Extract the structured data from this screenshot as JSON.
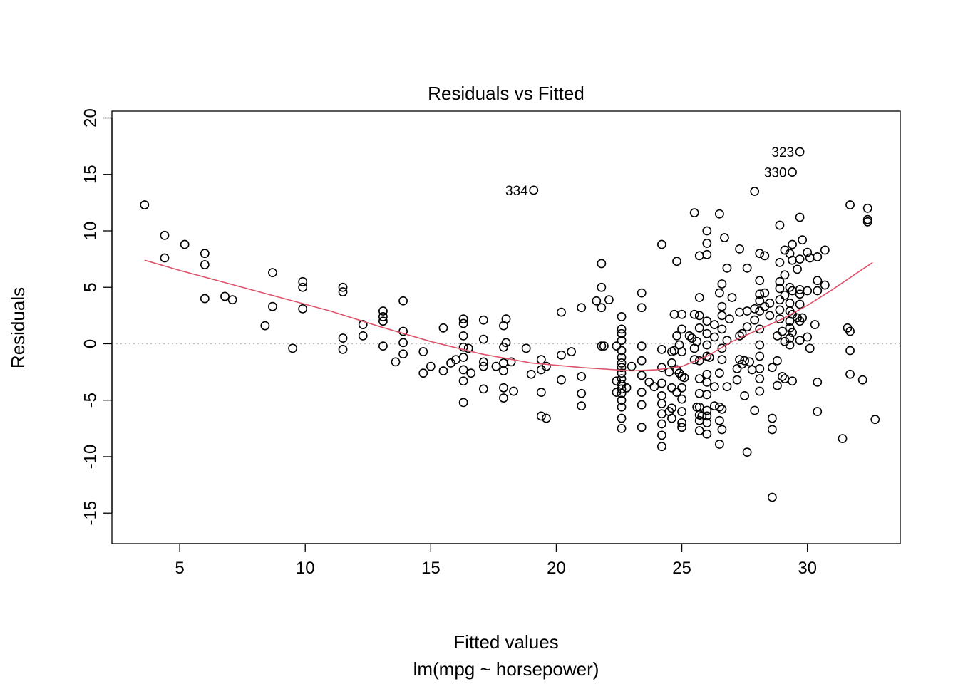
{
  "chart_data": {
    "type": "scatter",
    "title": "Residuals vs Fitted",
    "xlabel": "Fitted values",
    "xlabel2": "lm(mpg ~ horsepower)",
    "ylabel": "Residuals",
    "xlim": [
      2.3,
      33.7
    ],
    "ylim": [
      -17.7,
      20.6
    ],
    "xticks": [
      5,
      10,
      15,
      20,
      25,
      30
    ],
    "yticks": [
      -15,
      -10,
      -5,
      0,
      5,
      10,
      15,
      20
    ],
    "grid": false,
    "reference_line": {
      "y": 0,
      "style": "dotted",
      "color": "#bebebe"
    },
    "smooth_color": "#DF536B",
    "point_color": "#000000",
    "smooth": [
      [
        3.6,
        7.4
      ],
      [
        5,
        6.5
      ],
      [
        7,
        5.3
      ],
      [
        9,
        4.1
      ],
      [
        11,
        2.9
      ],
      [
        13,
        1.5
      ],
      [
        15,
        0.2
      ],
      [
        17,
        -0.9
      ],
      [
        19,
        -1.7
      ],
      [
        21,
        -2.1
      ],
      [
        23,
        -2.4
      ],
      [
        24,
        -2.3
      ],
      [
        25,
        -2.0
      ],
      [
        26,
        -1.1
      ],
      [
        27,
        0.2
      ],
      [
        28,
        1.2
      ],
      [
        29,
        2.2
      ],
      [
        30,
        3.4
      ],
      [
        31,
        4.8
      ],
      [
        32,
        6.3
      ],
      [
        32.6,
        7.2
      ]
    ],
    "points": [
      [
        3.6,
        12.3
      ],
      [
        4.4,
        9.6
      ],
      [
        4.4,
        7.6
      ],
      [
        5.2,
        8.8
      ],
      [
        6.0,
        8.0
      ],
      [
        6.0,
        7.0
      ],
      [
        6.0,
        4.0
      ],
      [
        6.8,
        4.2
      ],
      [
        7.1,
        3.9
      ],
      [
        8.4,
        1.6
      ],
      [
        8.7,
        3.3
      ],
      [
        8.7,
        6.3
      ],
      [
        9.5,
        -0.4
      ],
      [
        9.9,
        5.5
      ],
      [
        9.9,
        5.0
      ],
      [
        9.9,
        3.1
      ],
      [
        11.5,
        5.0
      ],
      [
        11.5,
        4.6
      ],
      [
        11.5,
        0.5
      ],
      [
        11.5,
        -0.5
      ],
      [
        12.3,
        1.7
      ],
      [
        12.3,
        0.7
      ],
      [
        13.1,
        2.9
      ],
      [
        13.1,
        2.4
      ],
      [
        13.1,
        2.0
      ],
      [
        13.1,
        -0.2
      ],
      [
        13.6,
        -1.6
      ],
      [
        13.9,
        3.8
      ],
      [
        13.9,
        1.1
      ],
      [
        13.9,
        0.1
      ],
      [
        13.9,
        -0.9
      ],
      [
        14.7,
        -0.7
      ],
      [
        14.7,
        -2.6
      ],
      [
        15.0,
        -2.0
      ],
      [
        15.5,
        1.4
      ],
      [
        15.5,
        -2.4
      ],
      [
        15.8,
        -1.7
      ],
      [
        16.0,
        -1.4
      ],
      [
        16.3,
        2.2
      ],
      [
        16.3,
        1.8
      ],
      [
        16.3,
        0.7
      ],
      [
        16.3,
        -0.3
      ],
      [
        16.3,
        -1.2
      ],
      [
        16.3,
        -2.3
      ],
      [
        16.3,
        -3.3
      ],
      [
        16.3,
        -5.2
      ],
      [
        16.5,
        -0.4
      ],
      [
        16.6,
        -2.6
      ],
      [
        17.1,
        2.1
      ],
      [
        17.1,
        0.4
      ],
      [
        17.1,
        -1.6
      ],
      [
        17.1,
        -2.0
      ],
      [
        17.1,
        -4.0
      ],
      [
        17.6,
        -2.0
      ],
      [
        17.9,
        1.6
      ],
      [
        17.9,
        -0.3
      ],
      [
        17.9,
        -1.7
      ],
      [
        17.9,
        -2.4
      ],
      [
        17.9,
        -3.9
      ],
      [
        17.9,
        -4.8
      ],
      [
        18.0,
        2.2
      ],
      [
        18.0,
        0.1
      ],
      [
        18.2,
        -1.6
      ],
      [
        18.3,
        -4.2
      ],
      [
        18.8,
        -0.4
      ],
      [
        19.0,
        -2.7
      ],
      [
        19.1,
        13.6
      ],
      [
        19.4,
        -1.4
      ],
      [
        19.4,
        -2.3
      ],
      [
        19.4,
        -4.3
      ],
      [
        19.4,
        -6.4
      ],
      [
        19.6,
        -2.0
      ],
      [
        19.6,
        -6.6
      ],
      [
        20.2,
        2.8
      ],
      [
        20.2,
        -1.0
      ],
      [
        20.2,
        -3.2
      ],
      [
        20.6,
        -0.7
      ],
      [
        21.0,
        3.2
      ],
      [
        21.0,
        -2.9
      ],
      [
        21.0,
        -4.4
      ],
      [
        21.0,
        -5.5
      ],
      [
        21.6,
        3.8
      ],
      [
        21.8,
        7.1
      ],
      [
        21.8,
        5.0
      ],
      [
        21.8,
        3.2
      ],
      [
        21.8,
        -0.2
      ],
      [
        21.9,
        -0.2
      ],
      [
        22.1,
        3.9
      ],
      [
        22.4,
        -0.2
      ],
      [
        22.4,
        -3.3
      ],
      [
        22.4,
        -4.3
      ],
      [
        22.6,
        2.4
      ],
      [
        22.6,
        1.3
      ],
      [
        22.6,
        0.9
      ],
      [
        22.6,
        0.3
      ],
      [
        22.6,
        -0.6
      ],
      [
        22.6,
        -1.2
      ],
      [
        22.6,
        -1.7
      ],
      [
        22.6,
        -2.1
      ],
      [
        22.6,
        -2.6
      ],
      [
        22.6,
        -3.1
      ],
      [
        22.6,
        -3.6
      ],
      [
        22.6,
        -4.0
      ],
      [
        22.6,
        -4.4
      ],
      [
        22.6,
        -5.0
      ],
      [
        22.6,
        -5.6
      ],
      [
        22.6,
        -6.6
      ],
      [
        22.6,
        -7.5
      ],
      [
        22.8,
        -3.9
      ],
      [
        23.0,
        -2.0
      ],
      [
        23.4,
        4.5
      ],
      [
        23.4,
        3.2
      ],
      [
        23.4,
        -0.2
      ],
      [
        23.4,
        -1.5
      ],
      [
        23.4,
        -2.8
      ],
      [
        23.4,
        -4.3
      ],
      [
        23.4,
        -5.4
      ],
      [
        23.4,
        -7.4
      ],
      [
        23.7,
        -3.4
      ],
      [
        23.9,
        -3.8
      ],
      [
        24.2,
        8.8
      ],
      [
        24.2,
        -0.5
      ],
      [
        24.2,
        -2.1
      ],
      [
        24.2,
        -3.5
      ],
      [
        24.2,
        -4.6
      ],
      [
        24.2,
        -5.3
      ],
      [
        24.2,
        -6.2
      ],
      [
        24.2,
        -7.1
      ],
      [
        24.2,
        -8.1
      ],
      [
        24.2,
        -9.1
      ],
      [
        24.5,
        -2.5
      ],
      [
        24.5,
        -6.0
      ],
      [
        24.6,
        -0.7
      ],
      [
        24.6,
        -1.7
      ],
      [
        24.6,
        -3.9
      ],
      [
        24.6,
        -5.7
      ],
      [
        24.6,
        -6.6
      ],
      [
        24.7,
        2.6
      ],
      [
        24.7,
        -0.6
      ],
      [
        24.8,
        7.3
      ],
      [
        24.8,
        0.7
      ],
      [
        24.8,
        -2.3
      ],
      [
        24.8,
        -4.3
      ],
      [
        24.9,
        -0.1
      ],
      [
        24.9,
        -2.6
      ],
      [
        25.0,
        2.6
      ],
      [
        25.0,
        1.3
      ],
      [
        25.0,
        -0.7
      ],
      [
        25.0,
        -2.9
      ],
      [
        25.0,
        -3.9
      ],
      [
        25.0,
        -4.9
      ],
      [
        25.0,
        -6.0
      ],
      [
        25.0,
        -7.0
      ],
      [
        25.0,
        -7.4
      ],
      [
        25.1,
        -3.0
      ],
      [
        25.3,
        0.7
      ],
      [
        25.4,
        0.5
      ],
      [
        25.5,
        11.6
      ],
      [
        25.5,
        2.6
      ],
      [
        25.5,
        -0.4
      ],
      [
        25.5,
        -1.4
      ],
      [
        25.6,
        -5.6
      ],
      [
        25.6,
        0.2
      ],
      [
        25.7,
        7.8
      ],
      [
        25.7,
        4.1
      ],
      [
        25.7,
        2.5
      ],
      [
        25.7,
        1.4
      ],
      [
        25.7,
        -1.5
      ],
      [
        25.7,
        -3.1
      ],
      [
        25.7,
        -4.4
      ],
      [
        25.7,
        -5.6
      ],
      [
        25.7,
        -6.3
      ],
      [
        25.7,
        -6.8
      ],
      [
        25.7,
        -7.7
      ],
      [
        25.8,
        -6.4
      ],
      [
        26.0,
        10.0
      ],
      [
        26.0,
        8.9
      ],
      [
        26.0,
        7.9
      ],
      [
        26.0,
        2.0
      ],
      [
        26.0,
        0.9
      ],
      [
        26.0,
        -0.1
      ],
      [
        26.0,
        -1.1
      ],
      [
        26.0,
        -2.7
      ],
      [
        26.0,
        -3.4
      ],
      [
        26.0,
        -4.5
      ],
      [
        26.0,
        -5.9
      ],
      [
        26.0,
        -6.4
      ],
      [
        26.0,
        -7.0
      ],
      [
        26.0,
        -8.0
      ],
      [
        26.1,
        -1.2
      ],
      [
        26.3,
        1.7
      ],
      [
        26.3,
        0.6
      ],
      [
        26.3,
        -5.5
      ],
      [
        26.3,
        -3.8
      ],
      [
        26.5,
        11.5
      ],
      [
        26.5,
        4.5
      ],
      [
        26.5,
        -2.6
      ],
      [
        26.5,
        -5.6
      ],
      [
        26.5,
        -6.8
      ],
      [
        26.5,
        -8.9
      ],
      [
        26.6,
        5.3
      ],
      [
        26.6,
        3.3
      ],
      [
        26.6,
        2.5
      ],
      [
        26.6,
        1.3
      ],
      [
        26.6,
        -0.4
      ],
      [
        26.6,
        -1.4
      ],
      [
        26.6,
        -5.8
      ],
      [
        26.6,
        -7.6
      ],
      [
        26.7,
        9.4
      ],
      [
        26.8,
        6.7
      ],
      [
        26.8,
        0.3
      ],
      [
        26.8,
        -3.8
      ],
      [
        26.9,
        2.2
      ],
      [
        27.0,
        4.1
      ],
      [
        27.2,
        -3.2
      ],
      [
        27.2,
        -2.2
      ],
      [
        27.3,
        8.4
      ],
      [
        27.3,
        2.8
      ],
      [
        27.3,
        0.7
      ],
      [
        27.3,
        -1.4
      ],
      [
        27.4,
        0.9
      ],
      [
        27.4,
        -1.8
      ],
      [
        27.5,
        -1.5
      ],
      [
        27.5,
        -4.6
      ],
      [
        27.6,
        6.7
      ],
      [
        27.6,
        2.9
      ],
      [
        27.6,
        1.5
      ],
      [
        27.6,
        -9.6
      ],
      [
        27.7,
        -1.6
      ],
      [
        27.8,
        -2.3
      ],
      [
        27.9,
        13.5
      ],
      [
        27.9,
        3.1
      ],
      [
        27.9,
        2.1
      ],
      [
        27.9,
        -5.9
      ],
      [
        28.1,
        8.0
      ],
      [
        28.1,
        5.6
      ],
      [
        28.1,
        4.4
      ],
      [
        28.1,
        3.8
      ],
      [
        28.1,
        2.9
      ],
      [
        28.1,
        1.3
      ],
      [
        28.1,
        -0.1
      ],
      [
        28.1,
        -1.1
      ],
      [
        28.1,
        -2.2
      ],
      [
        28.1,
        -3.1
      ],
      [
        28.1,
        -4.2
      ],
      [
        28.3,
        7.8
      ],
      [
        28.3,
        4.5
      ],
      [
        28.3,
        3.3
      ],
      [
        28.5,
        3.6
      ],
      [
        28.5,
        2.5
      ],
      [
        28.6,
        -2.1
      ],
      [
        28.6,
        -6.6
      ],
      [
        28.6,
        -7.6
      ],
      [
        28.6,
        -13.6
      ],
      [
        28.8,
        0.7
      ],
      [
        28.8,
        -1.5
      ],
      [
        28.8,
        -3.7
      ],
      [
        28.9,
        10.5
      ],
      [
        28.9,
        7.2
      ],
      [
        28.9,
        5.5
      ],
      [
        28.9,
        4.9
      ],
      [
        28.9,
        3.9
      ],
      [
        28.9,
        3.0
      ],
      [
        28.9,
        2.2
      ],
      [
        29.0,
        1.1
      ],
      [
        29.0,
        -2.9
      ],
      [
        29.1,
        8.3
      ],
      [
        29.1,
        6.1
      ],
      [
        29.1,
        4.3
      ],
      [
        29.1,
        0.2
      ],
      [
        29.1,
        -3.1
      ],
      [
        29.3,
        8.0
      ],
      [
        29.3,
        5.0
      ],
      [
        29.3,
        3.6
      ],
      [
        29.3,
        2.9
      ],
      [
        29.3,
        2.0
      ],
      [
        29.3,
        1.4
      ],
      [
        29.3,
        0.5
      ],
      [
        29.3,
        -0.1
      ],
      [
        29.4,
        15.2
      ],
      [
        29.4,
        8.8
      ],
      [
        29.4,
        7.4
      ],
      [
        29.4,
        4.7
      ],
      [
        29.4,
        2.6
      ],
      [
        29.4,
        1.0
      ],
      [
        29.4,
        -3.3
      ],
      [
        29.6,
        6.6
      ],
      [
        29.6,
        2.3
      ],
      [
        29.7,
        17.0
      ],
      [
        29.7,
        11.2
      ],
      [
        29.7,
        7.5
      ],
      [
        29.7,
        4.8
      ],
      [
        29.7,
        4.4
      ],
      [
        29.7,
        3.5
      ],
      [
        29.7,
        2.0
      ],
      [
        29.7,
        0.3
      ],
      [
        29.8,
        9.2
      ],
      [
        29.8,
        2.3
      ],
      [
        30.0,
        8.1
      ],
      [
        30.0,
        4.7
      ],
      [
        30.0,
        0.6
      ],
      [
        30.1,
        7.6
      ],
      [
        30.1,
        -0.4
      ],
      [
        30.3,
        1.7
      ],
      [
        30.4,
        7.7
      ],
      [
        30.4,
        5.6
      ],
      [
        30.4,
        4.7
      ],
      [
        30.4,
        -3.4
      ],
      [
        30.4,
        -6.0
      ],
      [
        30.7,
        8.3
      ],
      [
        30.7,
        5.2
      ],
      [
        31.4,
        -8.4
      ],
      [
        31.6,
        1.4
      ],
      [
        31.7,
        12.3
      ],
      [
        31.7,
        1.1
      ],
      [
        31.7,
        -0.6
      ],
      [
        31.7,
        -2.7
      ],
      [
        32.2,
        -3.2
      ],
      [
        32.4,
        12.0
      ],
      [
        32.4,
        11.0
      ],
      [
        32.4,
        10.8
      ],
      [
        32.7,
        -6.7
      ]
    ],
    "labeled_points": [
      {
        "label": "323",
        "x": 29.7,
        "y": 17.0
      },
      {
        "label": "330",
        "x": 29.4,
        "y": 15.2
      },
      {
        "label": "334",
        "x": 19.1,
        "y": 13.6
      }
    ]
  }
}
